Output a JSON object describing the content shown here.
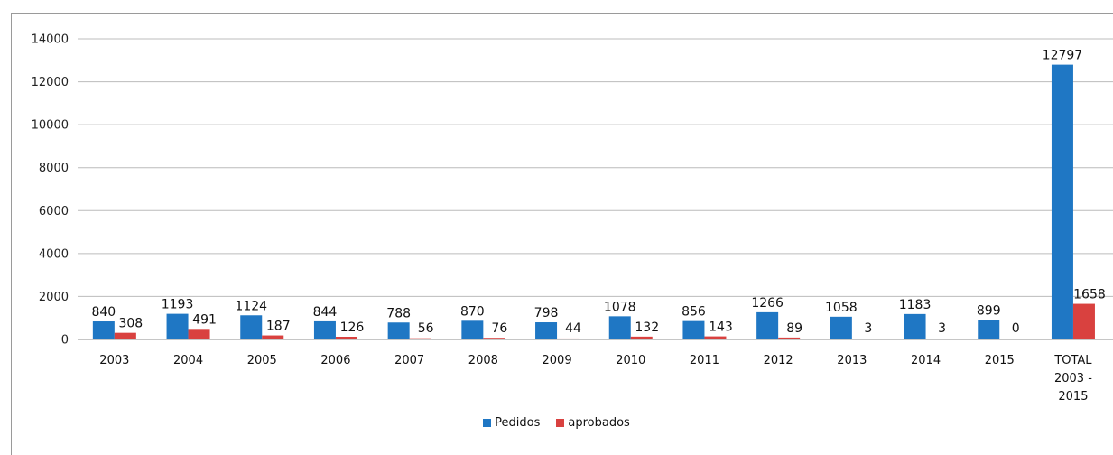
{
  "chart_data": {
    "type": "bar",
    "categories": [
      "2003",
      "2004",
      "2005",
      "2006",
      "2007",
      "2008",
      "2009",
      "2010",
      "2011",
      "2012",
      "2013",
      "2014",
      "2015",
      "TOTAL\n2003 -\n2015"
    ],
    "series": [
      {
        "name": "Pedidos",
        "color": "#1f77c4",
        "values": [
          840,
          1193,
          1124,
          844,
          788,
          870,
          798,
          1078,
          856,
          1266,
          1058,
          1183,
          899,
          12797
        ]
      },
      {
        "name": "aprobados",
        "color": "#d9413f",
        "values": [
          308,
          491,
          187,
          126,
          56,
          76,
          44,
          132,
          143,
          89,
          3,
          3,
          0,
          1658
        ]
      }
    ],
    "ylim": [
      0,
      14000
    ],
    "yticks": [
      0,
      2000,
      4000,
      6000,
      8000,
      10000,
      12000,
      14000
    ],
    "grid": true,
    "legend": "bottom",
    "title": "",
    "xlabel": "",
    "ylabel": ""
  }
}
